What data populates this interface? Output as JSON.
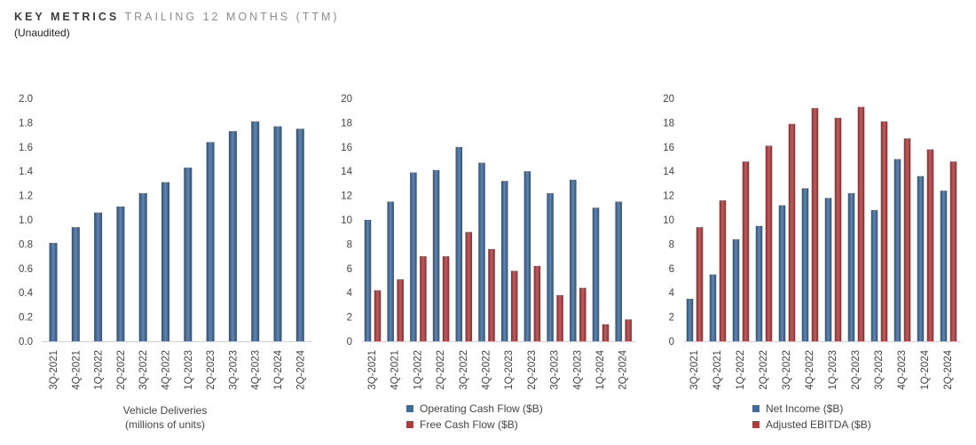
{
  "header": {
    "title_main": "KEY METRICS",
    "title_sub": "TRAILING 12 MONTHS (TTM)",
    "note": "(Unaudited)"
  },
  "colors": {
    "blue": "#3f6a9c",
    "red": "#b13a3d"
  },
  "chart_data": [
    {
      "type": "bar",
      "categories": [
        "3Q-2021",
        "4Q-2021",
        "1Q-2022",
        "2Q-2022",
        "3Q-2022",
        "4Q-2022",
        "1Q-2023",
        "2Q-2023",
        "3Q-2023",
        "4Q-2023",
        "1Q-2024",
        "2Q-2024"
      ],
      "series": [
        {
          "name": "",
          "color": "#3f6a9c",
          "values": [
            0.81,
            0.94,
            1.06,
            1.11,
            1.22,
            1.31,
            1.43,
            1.64,
            1.73,
            1.81,
            1.77,
            1.75
          ]
        }
      ],
      "ylim": [
        0,
        2.0
      ],
      "yticks": [
        "0.0",
        "0.2",
        "0.4",
        "0.6",
        "0.8",
        "1.0",
        "1.2",
        "1.4",
        "1.6",
        "1.8",
        "2.0"
      ],
      "ylabel_lines": [
        "Vehicle Deliveries",
        "(millions of units)"
      ],
      "legend": [],
      "grid": false
    },
    {
      "type": "bar",
      "categories": [
        "3Q-2021",
        "4Q-2021",
        "1Q-2022",
        "2Q-2022",
        "3Q-2022",
        "4Q-2022",
        "1Q-2023",
        "2Q-2023",
        "3Q-2023",
        "4Q-2023",
        "1Q-2024",
        "2Q-2024"
      ],
      "series": [
        {
          "name": "Operating Cash Flow ($B)",
          "color": "#3f6a9c",
          "values": [
            10.0,
            11.5,
            13.9,
            14.1,
            16.0,
            14.7,
            13.2,
            14.0,
            12.2,
            13.3,
            11.0,
            11.5
          ]
        },
        {
          "name": "Free Cash Flow ($B)",
          "color": "#b13a3d",
          "values": [
            4.2,
            5.1,
            7.0,
            7.0,
            9.0,
            7.6,
            5.8,
            6.2,
            3.8,
            4.4,
            1.4,
            1.8
          ]
        }
      ],
      "ylim": [
        0,
        20
      ],
      "yticks": [
        "0",
        "2",
        "4",
        "6",
        "8",
        "10",
        "12",
        "14",
        "16",
        "18",
        "20"
      ],
      "ylabel_lines": [],
      "legend": [
        "Operating Cash Flow ($B)",
        "Free Cash Flow ($B)"
      ],
      "grid": false
    },
    {
      "type": "bar",
      "categories": [
        "3Q-2021",
        "4Q-2021",
        "1Q-2022",
        "2Q-2022",
        "3Q-2022",
        "4Q-2022",
        "1Q-2023",
        "2Q-2023",
        "3Q-2023",
        "4Q-2023",
        "1Q-2024",
        "2Q-2024"
      ],
      "series": [
        {
          "name": "Net Income ($B)",
          "color": "#3f6a9c",
          "values": [
            3.5,
            5.5,
            8.4,
            9.5,
            11.2,
            12.6,
            11.8,
            12.2,
            10.8,
            15.0,
            13.6,
            12.4
          ]
        },
        {
          "name": "Adjusted EBITDA ($B)",
          "color": "#b13a3d",
          "values": [
            9.4,
            11.6,
            14.8,
            16.1,
            17.9,
            19.2,
            18.4,
            19.3,
            18.1,
            16.7,
            15.8,
            14.8
          ]
        }
      ],
      "ylim": [
        0,
        20
      ],
      "yticks": [
        "0",
        "2",
        "4",
        "6",
        "8",
        "10",
        "12",
        "14",
        "16",
        "18",
        "20"
      ],
      "ylabel_lines": [],
      "legend": [
        "Net Income ($B)",
        "Adjusted EBITDA ($B)"
      ],
      "grid": false
    }
  ]
}
